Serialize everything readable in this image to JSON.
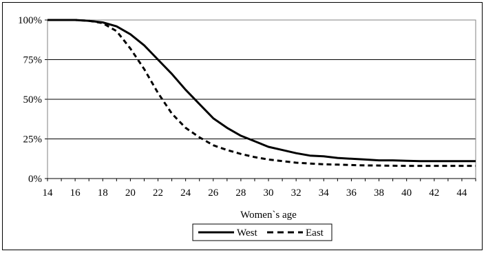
{
  "chart_data": {
    "type": "line",
    "title": "",
    "xlabel": "Women`s age",
    "ylabel": "",
    "x": [
      14,
      15,
      16,
      17,
      18,
      19,
      20,
      21,
      22,
      23,
      24,
      25,
      26,
      27,
      28,
      29,
      30,
      31,
      32,
      33,
      34,
      35,
      36,
      37,
      38,
      39,
      40,
      41,
      42,
      43,
      44,
      45
    ],
    "xticks": [
      14,
      16,
      18,
      20,
      22,
      24,
      26,
      28,
      30,
      32,
      34,
      36,
      38,
      40,
      42,
      44
    ],
    "xtick_labels": [
      "14",
      "16",
      "18",
      "20",
      "22",
      "24",
      "26",
      "28",
      "30",
      "32",
      "34",
      "36",
      "38",
      "40",
      "42",
      "44"
    ],
    "xlim": [
      14,
      45
    ],
    "yticks": [
      0,
      25,
      50,
      75,
      100
    ],
    "ytick_labels": [
      "0%",
      "25%",
      "50%",
      "75%",
      "100%"
    ],
    "ylim": [
      0,
      100
    ],
    "grid": "horizontal",
    "legend_position": "bottom",
    "series": [
      {
        "name": "West",
        "style": "solid",
        "color": "#000000",
        "values": [
          100,
          100,
          100,
          99.5,
          98.5,
          96,
          91,
          84,
          75,
          66,
          56,
          47,
          38,
          32,
          27,
          23.5,
          20,
          18,
          16,
          14.5,
          14,
          13,
          12.5,
          12,
          11.5,
          11.5,
          11.2,
          11,
          11,
          11,
          11,
          11
        ]
      },
      {
        "name": "East",
        "style": "dashed",
        "color": "#000000",
        "values": [
          100,
          100,
          100,
          99.5,
          98,
          93,
          82,
          69,
          54,
          41,
          32,
          26,
          21,
          18,
          15.5,
          13.5,
          12,
          11,
          10,
          9.5,
          9,
          8.8,
          8.5,
          8.3,
          8.2,
          8.1,
          8,
          8,
          8,
          8,
          8,
          8
        ]
      }
    ]
  }
}
